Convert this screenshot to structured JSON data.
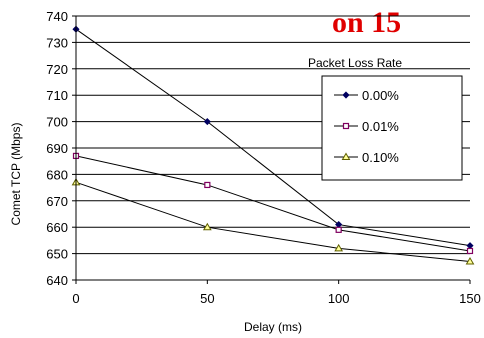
{
  "header_fragment": "on 15",
  "chart_data": {
    "type": "line",
    "xlabel": "Delay (ms)",
    "ylabel": "Comet TCP (Mbps)",
    "x": [
      0,
      50,
      100,
      150
    ],
    "xlim": [
      0,
      150
    ],
    "ylim": [
      640,
      740
    ],
    "xticks": [
      0,
      50,
      100,
      150
    ],
    "yticks": [
      640,
      650,
      660,
      670,
      680,
      690,
      700,
      710,
      720,
      730,
      740
    ],
    "grid": "horizontal",
    "legend": {
      "title": "Packet Loss Rate",
      "placement": "right"
    },
    "series": [
      {
        "name": "0.00%",
        "values": [
          735,
          700,
          661,
          653
        ],
        "color": "#000060",
        "marker": "diamond"
      },
      {
        "name": "0.01%",
        "values": [
          687,
          676,
          659,
          651
        ],
        "color": "#800060",
        "marker": "square"
      },
      {
        "name": "0.10%",
        "values": [
          677,
          660,
          652,
          647
        ],
        "color": "#606000",
        "marker": "triangle"
      }
    ]
  }
}
